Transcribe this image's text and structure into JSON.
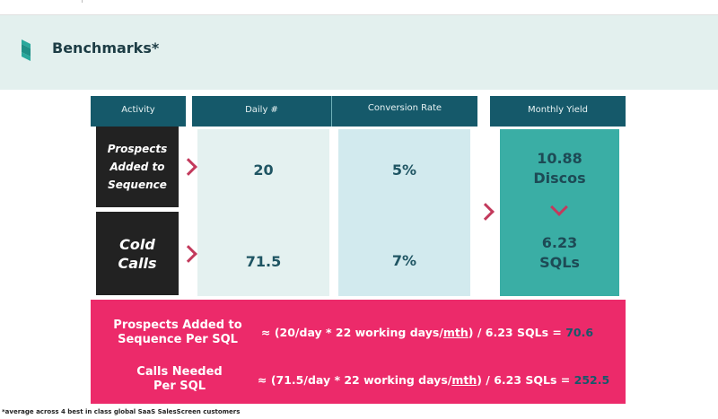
{
  "header": {
    "title": "Benchmarks*"
  },
  "columns": {
    "activity": "Activity",
    "daily": "Daily #",
    "conversion": "Conversion Rate",
    "yield": "Monthly Yield"
  },
  "rows": [
    {
      "activity_lines": [
        "Prospects",
        "Added to",
        "Sequence"
      ],
      "daily": "20",
      "conversion": "5%"
    },
    {
      "activity_lines": [
        "Cold",
        "Calls"
      ],
      "daily": "71.5",
      "conversion": "7%"
    }
  ],
  "yield": {
    "discos_value": "10.88",
    "discos_label": "Discos",
    "sqls_value": "6.23",
    "sqls_label": "SQLs"
  },
  "summary": [
    {
      "label_lines": [
        "Prospects Added to",
        "Sequence Per SQL"
      ],
      "formula_pre": "≈ (20/day * 22 working days/",
      "formula_ul": "mth",
      "formula_post": ") / 6.23 SQLs = ",
      "result": "70.6"
    },
    {
      "label_lines": [
        "Calls Needed",
        "Per SQL"
      ],
      "formula_pre": "≈ (71.5/day * 22 working days/",
      "formula_ul": "mth",
      "formula_post": ") / 6.23 SQLs = ",
      "result": "252.5"
    }
  ],
  "footnote": "*average across 4 best in class global SaaS SalesScreen customers",
  "colors": {
    "header_bg": "#e3f0ee",
    "column_header": "#15596a",
    "activity_box": "#222222",
    "arrow": "#c33a5c",
    "daily_panel": "#e4f1f0",
    "conversion_panel": "#d2eaee",
    "yield_panel": "#3aaea5",
    "summary_bg": "#ec2a6a",
    "logo": "#2aa89c"
  },
  "icons": {
    "logo": "salesscreen-logo-icon",
    "arrow": "chevron-right-icon",
    "down": "chevron-down-icon"
  }
}
